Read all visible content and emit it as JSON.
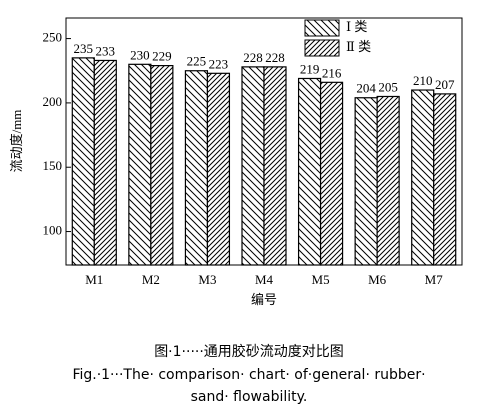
{
  "chart_data": {
    "type": "bar",
    "categories": [
      "M1",
      "M2",
      "M3",
      "M4",
      "M5",
      "M6",
      "M7"
    ],
    "series": [
      {
        "name": "Ⅰ 类",
        "color": "#000000",
        "values": [
          235,
          230,
          225,
          228,
          219,
          204,
          210
        ]
      },
      {
        "name": "Ⅱ 类",
        "color": "#000000",
        "values": [
          233,
          229,
          223,
          228,
          216,
          205,
          207
        ]
      }
    ],
    "ylim": [
      74,
      266
    ],
    "yticks": [
      100,
      150,
      200,
      250
    ],
    "y_label": "流动度/mm",
    "x_label": "编号",
    "caption_cn": "图·1·····通用胶砂流动度对比图",
    "caption_en_1": "Fig.·1···The· comparison· chart· of·general· rubber·",
    "caption_en_2": "sand· flowability."
  }
}
